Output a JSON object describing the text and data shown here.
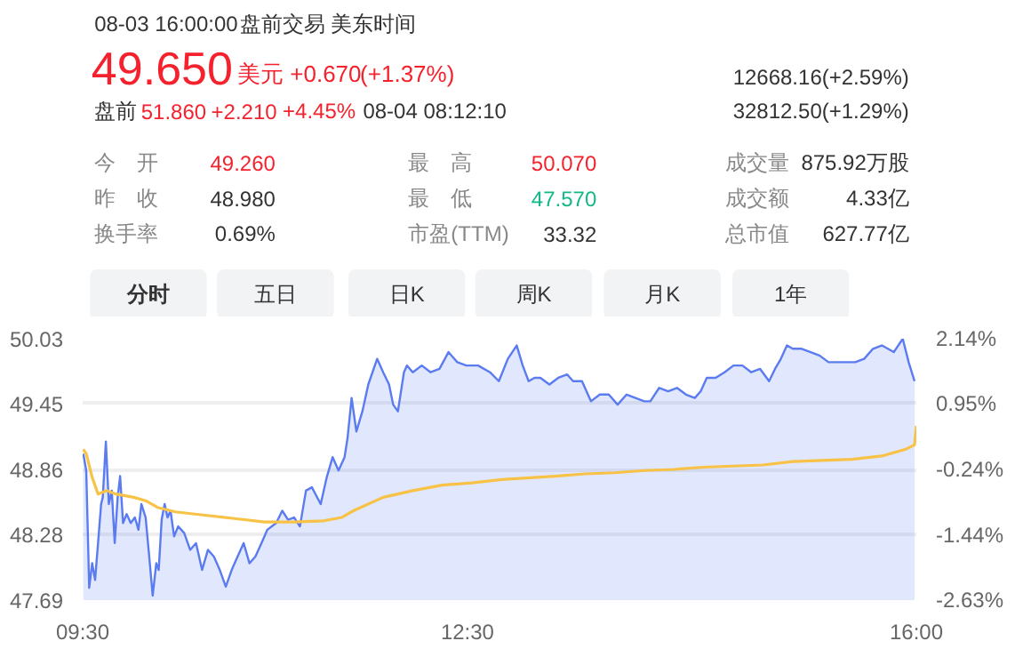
{
  "chart_data": {
    "type": "line",
    "annotations": [
      "08-03 16:00:00",
      "盘前交易",
      "美东时间",
      "49.650",
      "美元",
      "+0.670",
      "(+1.37%)",
      "盘前",
      "51.860",
      "+2.210",
      "+4.45%",
      "08-04 08:12:10",
      "12668.16(+2.59%)",
      "32812.50(+1.29%)",
      "今　开",
      "49.260",
      "最　高",
      "50.070",
      "成交量",
      "875.92万股",
      "昨　收",
      "48.980",
      "最　低",
      "47.570",
      "成交额",
      "4.33亿",
      "换手率",
      "0.69%",
      "市盈(TTM)",
      "33.32",
      "总市值",
      "627.77亿",
      "分时",
      "五日",
      "日K",
      "周K",
      "月K",
      "1年"
    ],
    "series": [
      {
        "type": "area",
        "color": "#5b7bf0",
        "x": [
          9.505,
          9.528,
          9.551,
          9.574,
          9.597,
          9.62,
          9.644,
          9.657,
          9.681,
          9.704,
          9.727,
          9.75,
          9.773,
          9.792,
          9.815,
          9.843,
          9.875,
          9.907,
          9.935,
          9.958,
          9.991,
          10.019,
          10.046,
          10.074,
          10.093,
          10.116,
          10.139,
          10.162,
          10.185,
          10.213,
          10.245,
          10.292,
          10.338,
          10.384,
          10.431,
          10.477,
          10.523,
          10.569,
          10.616,
          10.662,
          10.708,
          10.755,
          10.801,
          10.847,
          10.894,
          10.94,
          11.009,
          11.056,
          11.102,
          11.148,
          11.194,
          11.241,
          11.287,
          11.356,
          11.403,
          11.449,
          11.495,
          11.542,
          11.565,
          11.597,
          11.634,
          11.681,
          11.727,
          11.796,
          11.843,
          11.889,
          11.921,
          11.958,
          12.005,
          12.028,
          12.074,
          12.144,
          12.213,
          12.282,
          12.352,
          12.421,
          12.491,
          12.583,
          12.676,
          12.745,
          12.815,
          12.884,
          12.931,
          12.977,
          13.023,
          13.069,
          13.139,
          13.208,
          13.278,
          13.324,
          13.393,
          13.463,
          13.532,
          13.602,
          13.671,
          13.741,
          13.81,
          13.879,
          13.926,
          13.995,
          14.065,
          14.134,
          14.204,
          14.273,
          14.319,
          14.366,
          14.435,
          14.505,
          14.574,
          14.644,
          14.713,
          14.782,
          14.852,
          14.898,
          14.944,
          14.991,
          15.037,
          15.106,
          15.176,
          15.245,
          15.315,
          15.384,
          15.454,
          15.523,
          15.593,
          15.662,
          15.731,
          15.778,
          15.824,
          15.894,
          15.94,
          15.986
        ],
        "values": [
          49.0,
          48.85,
          47.8,
          48.02,
          47.87,
          48.2,
          48.55,
          48.61,
          49.11,
          48.55,
          48.67,
          48.2,
          48.61,
          48.8,
          48.38,
          48.46,
          48.38,
          48.43,
          48.32,
          48.55,
          48.43,
          48.08,
          47.73,
          48.02,
          47.96,
          48.41,
          48.55,
          48.43,
          48.49,
          48.26,
          48.35,
          48.29,
          48.14,
          48.2,
          47.96,
          48.14,
          48.08,
          47.96,
          47.81,
          47.96,
          48.08,
          48.2,
          48.02,
          48.08,
          48.2,
          48.32,
          48.38,
          48.49,
          48.41,
          48.43,
          48.35,
          48.67,
          48.7,
          48.55,
          48.79,
          48.97,
          48.85,
          48.97,
          49.14,
          49.5,
          49.2,
          49.38,
          49.62,
          49.85,
          49.73,
          49.62,
          49.44,
          49.38,
          49.73,
          49.79,
          49.73,
          49.79,
          49.73,
          49.76,
          49.91,
          49.82,
          49.79,
          49.79,
          49.73,
          49.65,
          49.85,
          49.97,
          49.79,
          49.65,
          49.68,
          49.68,
          49.62,
          49.68,
          49.71,
          49.65,
          49.65,
          49.47,
          49.53,
          49.53,
          49.44,
          49.53,
          49.5,
          49.47,
          49.47,
          49.59,
          49.56,
          49.59,
          49.53,
          49.5,
          49.56,
          49.68,
          49.68,
          49.73,
          49.79,
          49.79,
          49.73,
          49.76,
          49.65,
          49.76,
          49.85,
          49.97,
          49.94,
          49.94,
          49.91,
          49.88,
          49.82,
          49.82,
          49.82,
          49.82,
          49.85,
          49.94,
          49.97,
          49.94,
          49.91,
          50.03,
          49.82,
          49.65
        ]
      },
      {
        "color": "#f7c245",
        "x": [
          9.505,
          9.528,
          9.574,
          9.62,
          9.69,
          9.759,
          9.898,
          9.991,
          10.083,
          10.222,
          10.454,
          10.685,
          10.917,
          11.148,
          11.38,
          11.519,
          11.611,
          11.843,
          12.074,
          12.306,
          12.537,
          12.769,
          13.185,
          13.416,
          13.648,
          13.879,
          14.111,
          14.342,
          14.574,
          14.805,
          15.037,
          15.268,
          15.5,
          15.731,
          15.916,
          15.986,
          16.0
        ],
        "values": [
          49.04,
          49.0,
          48.79,
          48.64,
          48.67,
          48.64,
          48.61,
          48.58,
          48.52,
          48.48,
          48.45,
          48.42,
          48.39,
          48.39,
          48.4,
          48.43,
          48.49,
          48.61,
          48.67,
          48.72,
          48.74,
          48.77,
          48.8,
          48.82,
          48.83,
          48.85,
          48.86,
          48.88,
          48.89,
          48.9,
          48.93,
          48.94,
          48.95,
          48.98,
          49.04,
          49.08,
          49.25
        ]
      }
    ],
    "xlim": [
      9.5,
      16.0
    ],
    "xticks": [
      {
        "value": 9.5,
        "label": "09:30"
      },
      {
        "value": 12.5,
        "label": "12:30"
      },
      {
        "value": 16.0,
        "label": "16:00"
      }
    ],
    "ylim": [
      47.69,
      50.03
    ],
    "yticks": [
      47.69,
      48.28,
      48.86,
      49.45,
      50.03
    ],
    "y2lim": [
      -2.63,
      2.14
    ],
    "y2ticks": [
      {
        "value": -2.63,
        "label": "-2.63%"
      },
      {
        "value": -1.44,
        "label": "-1.44%"
      },
      {
        "value": -0.24,
        "label": "-0.24%"
      },
      {
        "value": 0.95,
        "label": "0.95%"
      },
      {
        "value": 2.14,
        "label": "2.14%"
      }
    ],
    "grid": "y"
  }
}
